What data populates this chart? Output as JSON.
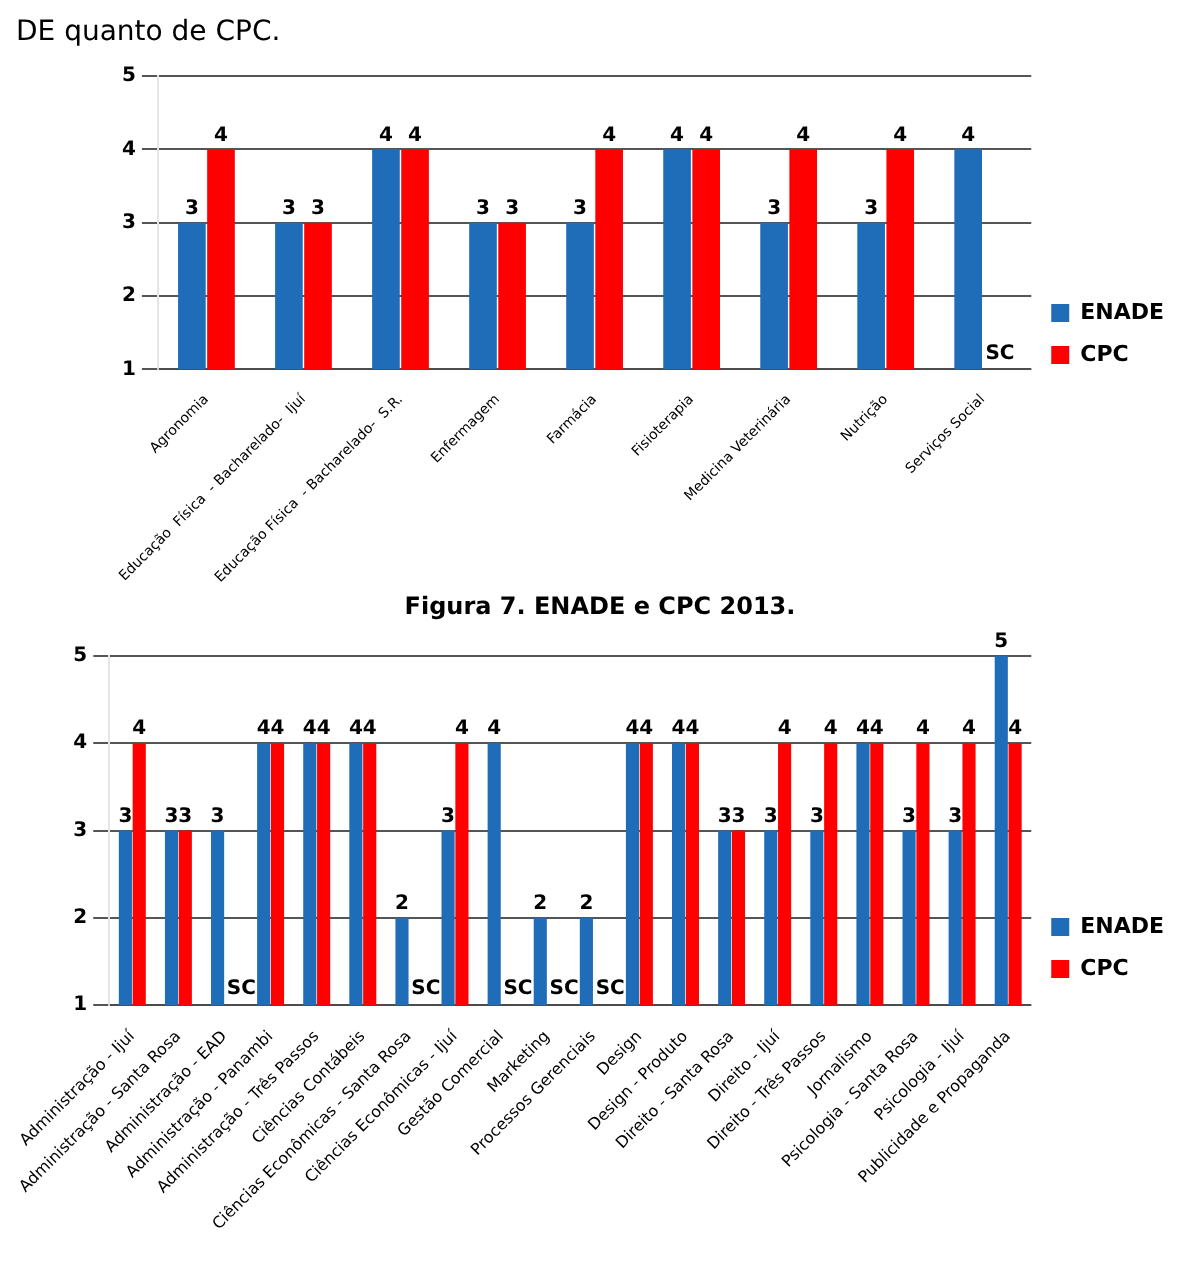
{
  "chart_data": [
    {
      "type": "bar",
      "annotations": [
        "DE quanto de CPC.",
        "Figura 7. ENADE e CPC 2013."
      ],
      "categories": [
        "Agronomia",
        "Educação  Física  - Bacharelado-  Ijuí",
        "Educação Física  - Bacharelado-  S.R.",
        "Enfermagem",
        "Farmácia",
        "Fisioterapia",
        "Medicina Veterinária",
        "Nutrição",
        "Serviços Social"
      ],
      "series": [
        {
          "name": "ENADE",
          "color": "#1f6db8",
          "values": [
            3,
            3,
            4,
            3,
            3,
            4,
            3,
            3,
            4
          ],
          "value_labels": [
            "3",
            "3",
            "4",
            "3",
            "3",
            "4",
            "3",
            "3",
            "4"
          ]
        },
        {
          "name": "CPC",
          "color": "#ff0000",
          "values": [
            4,
            3,
            4,
            3,
            4,
            4,
            4,
            4,
            null
          ],
          "value_labels": [
            "4",
            "3",
            "4",
            "3",
            "4",
            "4",
            "4",
            "4",
            "SC"
          ]
        }
      ],
      "ylim": [
        1,
        5
      ],
      "yticks": [
        1,
        2,
        3,
        4,
        5
      ],
      "grid": "y",
      "legend": "right"
    },
    {
      "type": "bar",
      "categories": [
        "Administração - Ijuí",
        "Administração - Santa Rosa",
        "Administração - EAD",
        "Administração - Panambi",
        "Administração - Três Passos",
        "Ciências Contábeis",
        "Ciências Econômicas - Santa Rosa",
        "Ciências Econômicas - Ijuí",
        "Gestão Comercial",
        "Marketing",
        "Processos Gerenciais",
        "Design",
        "Design - Produto",
        "Direito - Santa Rosa",
        "Direito - Ijuí",
        "Direito - Três Passos",
        "Jornalismo",
        "Psicologia - Santa Rosa",
        "Psicologia - Ijuí",
        "Publicidade e Propaganda"
      ],
      "series": [
        {
          "name": "ENADE",
          "color": "#1f6db8",
          "values": [
            3,
            3,
            3,
            4,
            4,
            4,
            2,
            3,
            4,
            2,
            2,
            4,
            4,
            3,
            3,
            3,
            4,
            3,
            3,
            5
          ],
          "value_labels": [
            "3",
            "3",
            "3",
            "4",
            "4",
            "4",
            "2",
            "3",
            "4",
            "2",
            "2",
            "4",
            "4",
            "3",
            "3",
            "3",
            "4",
            "3",
            "3",
            "5"
          ]
        },
        {
          "name": "CPC",
          "color": "#ff0000",
          "values": [
            4,
            3,
            null,
            4,
            4,
            4,
            null,
            4,
            null,
            null,
            null,
            4,
            4,
            3,
            4,
            4,
            4,
            4,
            4,
            4
          ],
          "value_labels": [
            "4",
            "3",
            "SC",
            "4",
            "4",
            "4",
            "SC",
            "4",
            "SC",
            "SC",
            "SC",
            "4",
            "4",
            "3",
            "4",
            "4",
            "4",
            "4",
            "4",
            "4"
          ]
        }
      ],
      "ylim": [
        1,
        5
      ],
      "yticks": [
        1,
        2,
        3,
        4,
        5
      ],
      "grid": "y",
      "legend": "right"
    }
  ]
}
